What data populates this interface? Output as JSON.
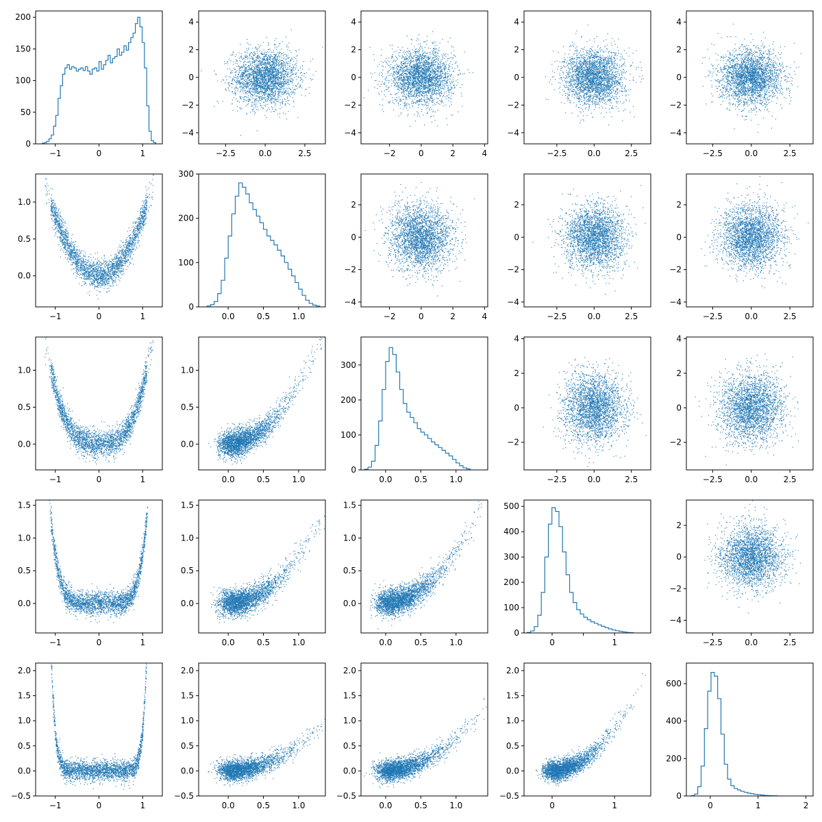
{
  "colors": {
    "series": "#1f77b4"
  },
  "chart_data": {
    "type": "scatter",
    "title": "",
    "layout": "5x5 pair plot (corner)",
    "grid": false,
    "legend": "none",
    "note": "Diagonal panels are step histograms; off-diagonal panels are dense scatter plots.",
    "panels": [
      {
        "row": 0,
        "col": 0,
        "type": "histogram",
        "xlim": [
          -1.45,
          1.45
        ],
        "ylim": [
          0,
          210
        ],
        "xticks": [
          -1,
          0,
          1
        ],
        "xtick_labels": [
          "−1",
          "0",
          "1"
        ],
        "yticks": [
          0,
          50,
          100,
          150,
          200
        ],
        "ytick_labels": [
          "0",
          "50",
          "100",
          "150",
          "200"
        ],
        "bin_range": [
          -1.3,
          1.3
        ],
        "bin_counts": [
          1,
          2,
          4,
          8,
          14,
          28,
          45,
          72,
          92,
          110,
          120,
          125,
          118,
          122,
          120,
          115,
          118,
          120,
          116,
          122,
          115,
          110,
          118,
          120,
          115,
          130,
          118,
          125,
          132,
          140,
          128,
          135,
          138,
          150,
          140,
          145,
          155,
          148,
          160,
          168,
          175,
          190,
          200,
          185,
          160,
          120,
          60,
          20,
          5,
          2
        ]
      },
      {
        "row": 0,
        "col": 1,
        "type": "scatter",
        "xlim": [
          -4.2,
          3.8
        ],
        "ylim": [
          -4.8,
          4.8
        ],
        "xticks": [
          -2.5,
          0,
          2.5
        ],
        "xtick_labels": [
          "−2.5",
          "0.0",
          "2.5"
        ],
        "yticks": [
          -4,
          -2,
          0,
          2,
          4
        ],
        "ytick_labels": [
          "−4",
          "−2",
          "0",
          "2",
          "4"
        ],
        "model": {
          "kind": "gaussian",
          "x_sd": 1.0,
          "y_sd": 1.0
        }
      },
      {
        "row": 0,
        "col": 2,
        "type": "scatter",
        "xlim": [
          -3.8,
          4.2
        ],
        "ylim": [
          -4.8,
          4.8
        ],
        "xticks": [
          -2,
          0,
          2,
          4
        ],
        "xtick_labels": [
          "−2",
          "0",
          "2",
          "4"
        ],
        "yticks": [
          -4,
          -2,
          0,
          2,
          4
        ],
        "ytick_labels": [
          "−4",
          "−2",
          "0",
          "2",
          "4"
        ],
        "model": {
          "kind": "gaussian",
          "x_sd": 1.0,
          "y_sd": 1.0
        }
      },
      {
        "row": 0,
        "col": 3,
        "type": "scatter",
        "xlim": [
          -4.7,
          3.8
        ],
        "ylim": [
          -4.8,
          4.8
        ],
        "xticks": [
          -2.5,
          0,
          2.5
        ],
        "xtick_labels": [
          "−2.5",
          "0.0",
          "2.5"
        ],
        "yticks": [
          -4,
          -2,
          0,
          2,
          4
        ],
        "ytick_labels": [
          "−4",
          "−2",
          "0",
          "2",
          "4"
        ],
        "model": {
          "kind": "gaussian",
          "x_sd": 1.0,
          "y_sd": 1.0
        }
      },
      {
        "row": 0,
        "col": 4,
        "type": "scatter",
        "xlim": [
          -4.2,
          4.0
        ],
        "ylim": [
          -4.8,
          4.8
        ],
        "xticks": [
          -2.5,
          0,
          2.5
        ],
        "xtick_labels": [
          "−2.5",
          "0.0",
          "2.5"
        ],
        "yticks": [
          -4,
          -2,
          0,
          2,
          4
        ],
        "ytick_labels": [
          "−4",
          "−2",
          "0",
          "2",
          "4"
        ],
        "model": {
          "kind": "gaussian",
          "x_sd": 1.0,
          "y_sd": 1.0
        }
      },
      {
        "row": 1,
        "col": 0,
        "type": "scatter",
        "xlim": [
          -1.45,
          1.45
        ],
        "ylim": [
          -0.42,
          1.38
        ],
        "xticks": [
          -1,
          0,
          1
        ],
        "xtick_labels": [
          "−1",
          "0",
          "1"
        ],
        "yticks": [
          0,
          0.5,
          1
        ],
        "ytick_labels": [
          "0.0",
          "0.5",
          "1.0"
        ],
        "model": {
          "kind": "parabola",
          "a": 0.8,
          "pow": 2,
          "noise": 0.1
        }
      },
      {
        "row": 1,
        "col": 1,
        "type": "histogram",
        "xlim": [
          -0.42,
          1.38
        ],
        "ylim": [
          0,
          300
        ],
        "xticks": [
          0,
          0.5,
          1
        ],
        "xtick_labels": [
          "0.0",
          "0.5",
          "1.0"
        ],
        "yticks": [
          0,
          100,
          200,
          300
        ],
        "ytick_labels": [
          "0",
          "100",
          "200",
          "300"
        ],
        "bin_range": [
          -0.3,
          1.3
        ],
        "bin_counts": [
          2,
          5,
          12,
          30,
          60,
          110,
          160,
          210,
          250,
          280,
          270,
          255,
          235,
          220,
          205,
          190,
          175,
          160,
          150,
          140,
          128,
          115,
          100,
          85,
          70,
          55,
          40,
          26,
          15,
          8,
          4,
          2
        ]
      },
      {
        "row": 1,
        "col": 2,
        "type": "scatter",
        "xlim": [
          -3.8,
          4.2
        ],
        "ylim": [
          -4.3,
          3.9
        ],
        "xticks": [
          -2,
          0,
          2,
          4
        ],
        "xtick_labels": [
          "−2",
          "0",
          "2",
          "4"
        ],
        "yticks": [
          -4,
          -2,
          0,
          2
        ],
        "ytick_labels": [
          "−4",
          "−2",
          "0",
          "2"
        ],
        "model": {
          "kind": "gaussian",
          "x_sd": 1.0,
          "y_sd": 1.0
        }
      },
      {
        "row": 1,
        "col": 3,
        "type": "scatter",
        "xlim": [
          -4.7,
          3.8
        ],
        "ylim": [
          -4.3,
          3.9
        ],
        "xticks": [
          -2.5,
          0,
          2.5
        ],
        "xtick_labels": [
          "−2.5",
          "0.0",
          "2.5"
        ],
        "yticks": [
          -4,
          -2,
          0,
          2
        ],
        "ytick_labels": [
          "−4",
          "−2",
          "0",
          "2"
        ],
        "model": {
          "kind": "gaussian",
          "x_sd": 1.0,
          "y_sd": 1.0
        }
      },
      {
        "row": 1,
        "col": 4,
        "type": "scatter",
        "xlim": [
          -4.2,
          4.0
        ],
        "ylim": [
          -4.3,
          3.9
        ],
        "xticks": [
          -2.5,
          0,
          2.5
        ],
        "xtick_labels": [
          "−2.5",
          "0.0",
          "2.5"
        ],
        "yticks": [
          -4,
          -2,
          0,
          2
        ],
        "ytick_labels": [
          "−4",
          "−2",
          "0",
          "2"
        ],
        "model": {
          "kind": "gaussian",
          "x_sd": 1.0,
          "y_sd": 1.0
        }
      },
      {
        "row": 2,
        "col": 0,
        "type": "scatter",
        "xlim": [
          -1.45,
          1.45
        ],
        "ylim": [
          -0.35,
          1.45
        ],
        "xticks": [
          -1,
          0,
          1
        ],
        "xtick_labels": [
          "−1",
          "0",
          "1"
        ],
        "yticks": [
          0,
          0.5,
          1
        ],
        "ytick_labels": [
          "0.0",
          "0.5",
          "1.0"
        ],
        "model": {
          "kind": "parabola",
          "a": 0.75,
          "pow": 3,
          "noise": 0.09
        }
      },
      {
        "row": 2,
        "col": 1,
        "type": "scatter",
        "xlim": [
          -0.42,
          1.38
        ],
        "ylim": [
          -0.35,
          1.45
        ],
        "xticks": [
          0,
          0.5,
          1
        ],
        "xtick_labels": [
          "0.0",
          "0.5",
          "1.0"
        ],
        "yticks": [
          0,
          0.5,
          1
        ],
        "ytick_labels": [
          "0.0",
          "0.5",
          "1.0"
        ],
        "model": {
          "kind": "curve",
          "a": 0.8,
          "noise": 0.09
        }
      },
      {
        "row": 2,
        "col": 2,
        "type": "histogram",
        "xlim": [
          -0.35,
          1.45
        ],
        "ylim": [
          0,
          380
        ],
        "xticks": [
          0,
          0.5,
          1
        ],
        "xtick_labels": [
          "0.0",
          "0.5",
          "1.0"
        ],
        "yticks": [
          0,
          100,
          200,
          300
        ],
        "ytick_labels": [
          "0",
          "100",
          "200",
          "300"
        ],
        "bin_range": [
          -0.3,
          1.2
        ],
        "bin_counts": [
          2,
          8,
          25,
          70,
          140,
          230,
          310,
          350,
          330,
          280,
          230,
          190,
          165,
          150,
          135,
          118,
          108,
          100,
          90,
          80,
          72,
          64,
          56,
          48,
          40,
          30,
          20,
          12,
          6,
          3
        ]
      },
      {
        "row": 2,
        "col": 3,
        "type": "scatter",
        "xlim": [
          -4.7,
          3.8
        ],
        "ylim": [
          -3.6,
          4.1
        ],
        "xticks": [
          -2.5,
          0,
          2.5
        ],
        "xtick_labels": [
          "−2.5",
          "0.0",
          "2.5"
        ],
        "yticks": [
          -2,
          0,
          2,
          4
        ],
        "ytick_labels": [
          "−2",
          "0",
          "2",
          "4"
        ],
        "model": {
          "kind": "gaussian",
          "x_sd": 1.0,
          "y_sd": 1.0
        }
      },
      {
        "row": 2,
        "col": 4,
        "type": "scatter",
        "xlim": [
          -4.2,
          4.0
        ],
        "ylim": [
          -3.6,
          4.1
        ],
        "xticks": [
          -2.5,
          0,
          2.5
        ],
        "xtick_labels": [
          "−2.5",
          "0.0",
          "2.5"
        ],
        "yticks": [
          -2,
          0,
          2,
          4
        ],
        "ytick_labels": [
          "−2",
          "0",
          "2",
          "4"
        ],
        "model": {
          "kind": "gaussian",
          "x_sd": 1.0,
          "y_sd": 1.0
        }
      },
      {
        "row": 3,
        "col": 0,
        "type": "scatter",
        "xlim": [
          -1.45,
          1.45
        ],
        "ylim": [
          -0.45,
          1.58
        ],
        "xticks": [
          -1,
          0,
          1
        ],
        "xtick_labels": [
          "−1",
          "0",
          "1"
        ],
        "yticks": [
          0,
          0.5,
          1,
          1.5
        ],
        "ytick_labels": [
          "0.0",
          "0.5",
          "1.0",
          "1.5"
        ],
        "model": {
          "kind": "parabola",
          "a": 0.75,
          "pow": 6,
          "noise": 0.09
        }
      },
      {
        "row": 3,
        "col": 1,
        "type": "scatter",
        "xlim": [
          -0.42,
          1.38
        ],
        "ylim": [
          -0.45,
          1.58
        ],
        "xticks": [
          0,
          0.5,
          1
        ],
        "xtick_labels": [
          "0.0",
          "0.5",
          "1.0"
        ],
        "yticks": [
          0,
          0.5,
          1,
          1.5
        ],
        "ytick_labels": [
          "0.0",
          "0.5",
          "1.0",
          "1.5"
        ],
        "model": {
          "kind": "curve",
          "a": 0.7,
          "noise": 0.1
        }
      },
      {
        "row": 3,
        "col": 2,
        "type": "scatter",
        "xlim": [
          -0.35,
          1.45
        ],
        "ylim": [
          -0.45,
          1.58
        ],
        "xticks": [
          0,
          0.5,
          1
        ],
        "xtick_labels": [
          "0.0",
          "0.5",
          "1.0"
        ],
        "yticks": [
          0,
          0.5,
          1,
          1.5
        ],
        "ytick_labels": [
          "0.0",
          "0.5",
          "1.0",
          "1.5"
        ],
        "model": {
          "kind": "curve",
          "a": 0.8,
          "noise": 0.1
        }
      },
      {
        "row": 3,
        "col": 3,
        "type": "histogram",
        "xlim": [
          -0.45,
          1.58
        ],
        "ylim": [
          0,
          525
        ],
        "xticks": [
          0,
          0.5,
          1
        ],
        "xtick_labels": [
          "0",
          "",
          "1"
        ],
        "yticks": [
          0,
          100,
          200,
          300,
          400,
          500
        ],
        "ytick_labels": [
          "0",
          "100",
          "200",
          "300",
          "400",
          "500"
        ],
        "bin_range": [
          -0.4,
          1.3
        ],
        "bin_counts": [
          2,
          8,
          25,
          70,
          160,
          300,
          430,
          495,
          480,
          420,
          320,
          230,
          160,
          120,
          92,
          75,
          62,
          52,
          44,
          38,
          32,
          26,
          21,
          16,
          12,
          9,
          6,
          4,
          2,
          1
        ]
      },
      {
        "row": 3,
        "col": 4,
        "type": "scatter",
        "xlim": [
          -4.2,
          4.0
        ],
        "ylim": [
          -4.8,
          3.6
        ],
        "xticks": [
          -2.5,
          0,
          2.5
        ],
        "xtick_labels": [
          "−2.5",
          "0.0",
          "2.5"
        ],
        "yticks": [
          -4,
          -2,
          0,
          2
        ],
        "ytick_labels": [
          "−4",
          "−2",
          "0",
          "2"
        ],
        "model": {
          "kind": "gaussian",
          "x_sd": 1.0,
          "y_sd": 1.0
        }
      },
      {
        "row": 4,
        "col": 0,
        "type": "scatter",
        "xlim": [
          -1.45,
          1.45
        ],
        "ylim": [
          -0.5,
          2.15
        ],
        "xticks": [
          -1,
          0,
          1
        ],
        "xtick_labels": [
          "−1",
          "0",
          "1"
        ],
        "yticks": [
          -0.5,
          0,
          0.5,
          1,
          1.5,
          2
        ],
        "ytick_labels": [
          "−0.5",
          "0.0",
          "0.5",
          "1.0",
          "1.5",
          "2.0"
        ],
        "model": {
          "kind": "parabola",
          "a": 0.8,
          "pow": 12,
          "noise": 0.1
        }
      },
      {
        "row": 4,
        "col": 1,
        "type": "scatter",
        "xlim": [
          -0.42,
          1.38
        ],
        "ylim": [
          -0.5,
          2.15
        ],
        "xticks": [
          0,
          0.5,
          1
        ],
        "xtick_labels": [
          "0.0",
          "0.5",
          "1.0"
        ],
        "yticks": [
          -0.5,
          0,
          0.5,
          1,
          1.5,
          2
        ],
        "ytick_labels": [
          "−0.5",
          "0.0",
          "0.5",
          "1.0",
          "1.5",
          "2.0"
        ],
        "model": {
          "kind": "curve",
          "a": 0.5,
          "noise": 0.1
        }
      },
      {
        "row": 4,
        "col": 2,
        "type": "scatter",
        "xlim": [
          -0.35,
          1.45
        ],
        "ylim": [
          -0.5,
          2.15
        ],
        "xticks": [
          0,
          0.5,
          1
        ],
        "xtick_labels": [
          "0.0",
          "0.5",
          "1.0"
        ],
        "yticks": [
          -0.5,
          0,
          0.5,
          1,
          1.5,
          2
        ],
        "ytick_labels": [
          "−0.5",
          "0.0",
          "0.5",
          "1.0",
          "1.5",
          "2.0"
        ],
        "model": {
          "kind": "curve",
          "a": 0.65,
          "noise": 0.1
        }
      },
      {
        "row": 4,
        "col": 3,
        "type": "scatter",
        "xlim": [
          -0.45,
          1.58
        ],
        "ylim": [
          -0.5,
          2.15
        ],
        "xticks": [
          0,
          1
        ],
        "xtick_labels": [
          "0",
          "1"
        ],
        "yticks": [
          -0.5,
          0,
          0.5,
          1,
          1.5,
          2
        ],
        "ytick_labels": [
          "−0.5",
          "0.0",
          "0.5",
          "1.0",
          "1.5",
          "2.0"
        ],
        "model": {
          "kind": "curve",
          "a": 0.85,
          "noise": 0.1
        }
      },
      {
        "row": 4,
        "col": 4,
        "type": "histogram",
        "xlim": [
          -0.5,
          2.15
        ],
        "ylim": [
          0,
          710
        ],
        "xticks": [
          0,
          1,
          2
        ],
        "xtick_labels": [
          "0",
          "1",
          "2"
        ],
        "yticks": [
          0,
          200,
          400,
          600
        ],
        "ytick_labels": [
          "0",
          "200",
          "400",
          "600"
        ],
        "bin_range": [
          -0.4,
          1.4
        ],
        "bin_counts": [
          2,
          10,
          50,
          160,
          360,
          560,
          660,
          640,
          520,
          330,
          170,
          90,
          55,
          40,
          32,
          25,
          20,
          15,
          12,
          9,
          7,
          5,
          3,
          2,
          1,
          1
        ]
      }
    ]
  }
}
